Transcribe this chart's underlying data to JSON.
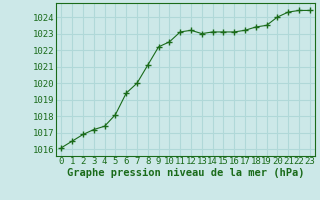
{
  "x": [
    0,
    1,
    2,
    3,
    4,
    5,
    6,
    7,
    8,
    9,
    10,
    11,
    12,
    13,
    14,
    15,
    16,
    17,
    18,
    19,
    20,
    21,
    22,
    23
  ],
  "y": [
    1016.1,
    1016.5,
    1016.9,
    1017.2,
    1017.4,
    1018.1,
    1019.4,
    1020.0,
    1021.1,
    1022.2,
    1022.5,
    1023.1,
    1023.2,
    1023.0,
    1023.1,
    1023.1,
    1023.1,
    1023.2,
    1023.4,
    1023.5,
    1024.0,
    1024.3,
    1024.4,
    1024.4
  ],
  "line_color": "#1a6b1a",
  "marker_color": "#1a6b1a",
  "bg_color": "#cce8e8",
  "grid_color": "#b0d8d8",
  "xlabel": "Graphe pression niveau de la mer (hPa)",
  "xlabel_color": "#1a6b1a",
  "ylabel_ticks": [
    1016,
    1017,
    1018,
    1019,
    1020,
    1021,
    1022,
    1023,
    1024
  ],
  "xlim": [
    -0.5,
    23.5
  ],
  "ylim": [
    1015.6,
    1024.85
  ],
  "tick_color": "#1a6b1a",
  "xlabel_fontsize": 7.5,
  "tick_fontsize": 6.5
}
